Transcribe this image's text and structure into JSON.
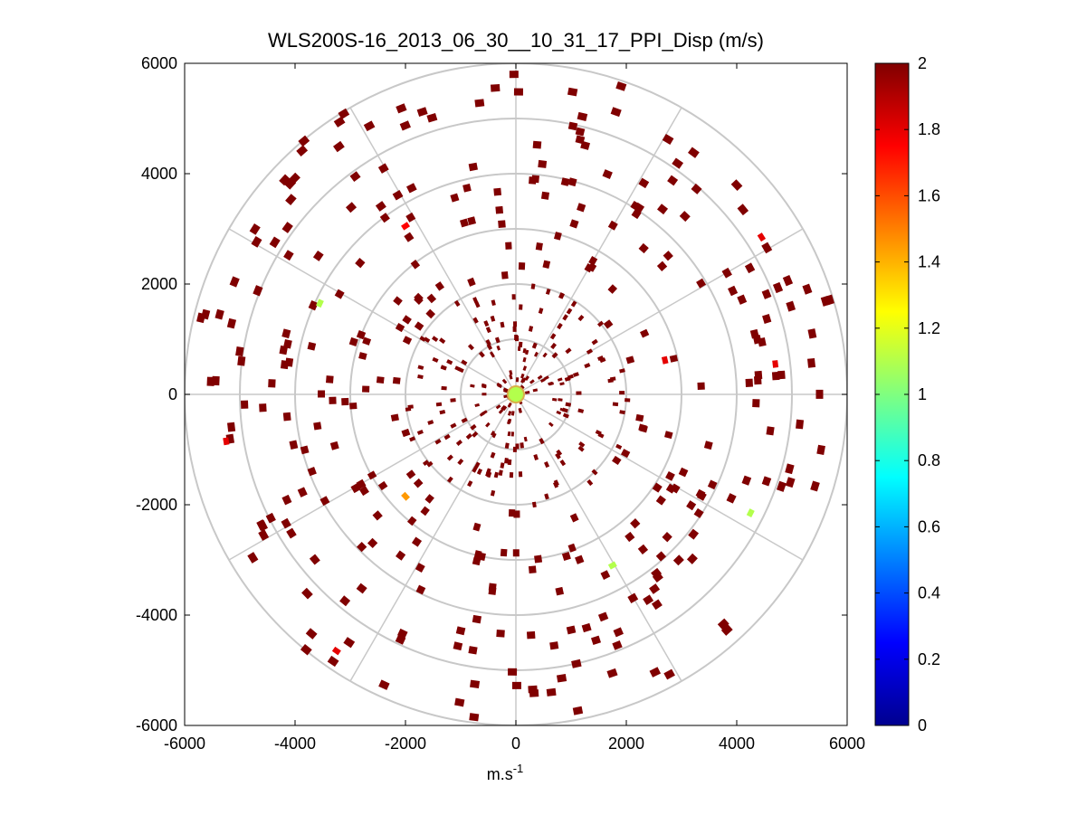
{
  "chart_data": {
    "type": "scatter",
    "subtype": "polar PPI display",
    "title": "WLS200S-16_2013_06_30__10_31_17_PPI_Disp (m/s)",
    "xlabel": "m.s",
    "xlabel_sup": "-1",
    "ylabel": "",
    "xlim": [
      -6000,
      6000
    ],
    "ylim": [
      -6000,
      6000
    ],
    "x_ticks": [
      "-6000",
      "-4000",
      "-2000",
      "0",
      "2000",
      "4000",
      "6000"
    ],
    "y_ticks": [
      "6000",
      "4000",
      "2000",
      "0",
      "-2000",
      "-4000",
      "-6000"
    ],
    "grid": true,
    "polar_grid": {
      "ring_radii": [
        1000,
        2000,
        3000,
        4000,
        5000,
        6000
      ],
      "spoke_angles_deg": [
        0,
        30,
        60,
        90,
        120,
        150,
        180,
        210,
        240,
        270,
        300,
        330
      ]
    },
    "colorbar": {
      "range": [
        0,
        2
      ],
      "ticks": [
        "2",
        "1.8",
        "1.6",
        "1.4",
        "1.2",
        "1",
        "0.8",
        "0.6",
        "0.4",
        "0.2",
        "0"
      ],
      "colormap": "jet",
      "placement": "right"
    },
    "default_value": 2,
    "highlighted_points": [
      {
        "x": -2000,
        "y": 3050,
        "v": 1.75
      },
      {
        "x": -3550,
        "y": 1650,
        "v": 1.1
      },
      {
        "x": -5250,
        "y": -850,
        "v": 1.8
      },
      {
        "x": -2000,
        "y": -1850,
        "v": 1.45
      },
      {
        "x": -3250,
        "y": -4650,
        "v": 1.8
      },
      {
        "x": 1750,
        "y": -3100,
        "v": 1.1
      },
      {
        "x": 4250,
        "y": -2150,
        "v": 1.1
      },
      {
        "x": 4450,
        "y": 2850,
        "v": 1.8
      },
      {
        "x": 4700,
        "y": 550,
        "v": 1.8
      },
      {
        "x": 2700,
        "y": 620,
        "v": 1.8
      },
      {
        "x": 0,
        "y": 0,
        "v": 1.1
      }
    ]
  }
}
